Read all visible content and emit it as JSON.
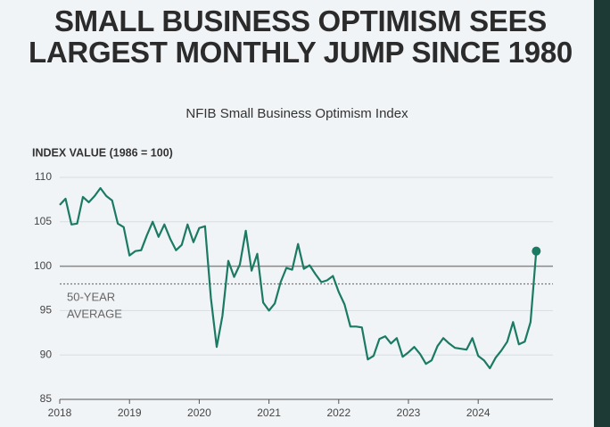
{
  "chart_data": {
    "type": "line",
    "title": "SMALL BUSINESS OPTIMISM SEES LARGEST MONTHLY JUMP SINCE 1980",
    "subtitle": "NFIB Small Business Optimism Index",
    "y_label": "INDEX VALUE (1986 = 100)",
    "annotation": "50-YEAR AVERAGE",
    "average": 98,
    "reference_line": 100,
    "xlim": [
      2018,
      2025.1
    ],
    "xticks": [
      2018,
      2019,
      2020,
      2021,
      2022,
      2023,
      2024
    ],
    "ylim": [
      85,
      110
    ],
    "yticks": [
      85,
      90,
      95,
      100,
      105,
      110
    ],
    "grid": true,
    "x": [
      2018,
      2018.083,
      2018.167,
      2018.25,
      2018.333,
      2018.417,
      2018.5,
      2018.583,
      2018.667,
      2018.75,
      2018.833,
      2018.917,
      2019,
      2019.083,
      2019.167,
      2019.25,
      2019.333,
      2019.417,
      2019.5,
      2019.583,
      2019.667,
      2019.75,
      2019.833,
      2019.917,
      2020,
      2020.083,
      2020.167,
      2020.25,
      2020.333,
      2020.417,
      2020.5,
      2020.583,
      2020.667,
      2020.75,
      2020.833,
      2020.917,
      2021,
      2021.083,
      2021.167,
      2021.25,
      2021.333,
      2021.417,
      2021.5,
      2021.583,
      2021.667,
      2021.75,
      2021.833,
      2021.917,
      2022,
      2022.083,
      2022.167,
      2022.25,
      2022.333,
      2022.417,
      2022.5,
      2022.583,
      2022.667,
      2022.75,
      2022.833,
      2022.917,
      2023,
      2023.083,
      2023.167,
      2023.25,
      2023.333,
      2023.417,
      2023.5,
      2023.583,
      2023.667,
      2023.75,
      2023.833,
      2023.917,
      2024,
      2024.083,
      2024.167,
      2024.25,
      2024.333,
      2024.417,
      2024.5,
      2024.583,
      2024.667,
      2024.75,
      2024.833
    ],
    "series": [
      {
        "name": "NFIB Small Business Optimism Index",
        "color": "#1b7a63",
        "values": [
          106.9,
          107.6,
          104.7,
          104.8,
          107.8,
          107.2,
          107.9,
          108.8,
          107.9,
          107.4,
          104.8,
          104.4,
          101.2,
          101.7,
          101.8,
          103.5,
          105.0,
          103.3,
          104.7,
          103.1,
          101.8,
          102.4,
          104.7,
          102.7,
          104.3,
          104.5,
          96.4,
          90.9,
          94.4,
          100.6,
          98.8,
          100.2,
          104.0,
          99.5,
          101.4,
          95.9,
          95.0,
          95.8,
          98.2,
          99.8,
          99.6,
          102.5,
          99.7,
          100.1,
          99.1,
          98.2,
          98.4,
          98.9,
          97.1,
          95.7,
          93.2,
          93.2,
          93.1,
          89.5,
          89.9,
          91.8,
          92.1,
          91.3,
          91.9,
          89.8,
          90.3,
          90.9,
          90.1,
          89.0,
          89.4,
          91.0,
          91.9,
          91.3,
          90.8,
          90.7,
          90.6,
          91.9,
          89.9,
          89.4,
          88.5,
          89.7,
          90.5,
          91.5,
          93.7,
          91.2,
          91.5,
          93.7,
          101.7
        ]
      }
    ]
  }
}
